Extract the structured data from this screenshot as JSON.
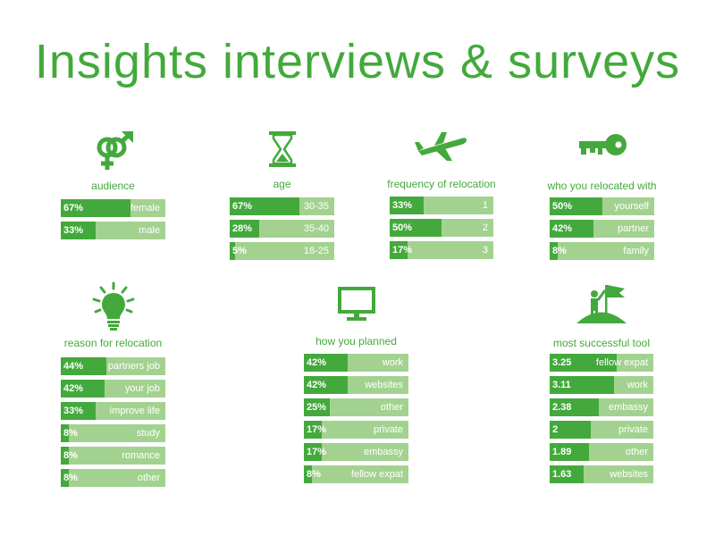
{
  "title": "Insights interviews & surveys",
  "colors": {
    "accent": "#43a93c",
    "light": "#a3d290",
    "background": "#ffffff"
  },
  "chart_data": [
    {
      "type": "bar",
      "title": "audience",
      "icon": "gender-icon",
      "categories": [
        "female",
        "male"
      ],
      "values": [
        67,
        33
      ],
      "labels": [
        "67%",
        "33%"
      ]
    },
    {
      "type": "bar",
      "title": "age",
      "icon": "hourglass-icon",
      "categories": [
        "30-35",
        "35-40",
        "18-25"
      ],
      "values": [
        67,
        28,
        5
      ],
      "labels": [
        "67%",
        "28%",
        "5%"
      ]
    },
    {
      "type": "bar",
      "title": "frequency of relocation",
      "icon": "airplane-icon",
      "categories": [
        "1",
        "2",
        "3"
      ],
      "values": [
        33,
        50,
        17
      ],
      "labels": [
        "33%",
        "50%",
        "17%"
      ]
    },
    {
      "type": "bar",
      "title": "who you relocated with",
      "icon": "key-icon",
      "categories": [
        "yourself",
        "partner",
        "family"
      ],
      "values": [
        50,
        42,
        8
      ],
      "labels": [
        "50%",
        "42%",
        "8%"
      ]
    },
    {
      "type": "bar",
      "title": "reason for relocation",
      "icon": "lightbulb-icon",
      "categories": [
        "partners job",
        "your job",
        "improve life",
        "study",
        "romance",
        "other"
      ],
      "values": [
        44,
        42,
        33,
        8,
        8,
        8
      ],
      "labels": [
        "44%",
        "42%",
        "33%",
        "8%",
        "8%",
        "8%"
      ]
    },
    {
      "type": "bar",
      "title": "how you planned",
      "icon": "monitor-icon",
      "categories": [
        "work",
        "websites",
        "other",
        "private",
        "embassy",
        "fellow expat"
      ],
      "values": [
        42,
        42,
        25,
        17,
        17,
        8
      ],
      "labels": [
        "42%",
        "42%",
        "25%",
        "17%",
        "17%",
        "8%"
      ]
    },
    {
      "type": "bar",
      "title": "most successful tool",
      "icon": "flag-summit-icon",
      "categories": [
        "fellow expat",
        "work",
        "embassy",
        "private",
        "other",
        "websites"
      ],
      "values": [
        3.25,
        3.11,
        2.38,
        2,
        1.89,
        1.63
      ],
      "labels": [
        "3.25",
        "3.11",
        "2.38",
        "2",
        "1.89",
        "1.63"
      ],
      "scale_max": 5
    }
  ]
}
